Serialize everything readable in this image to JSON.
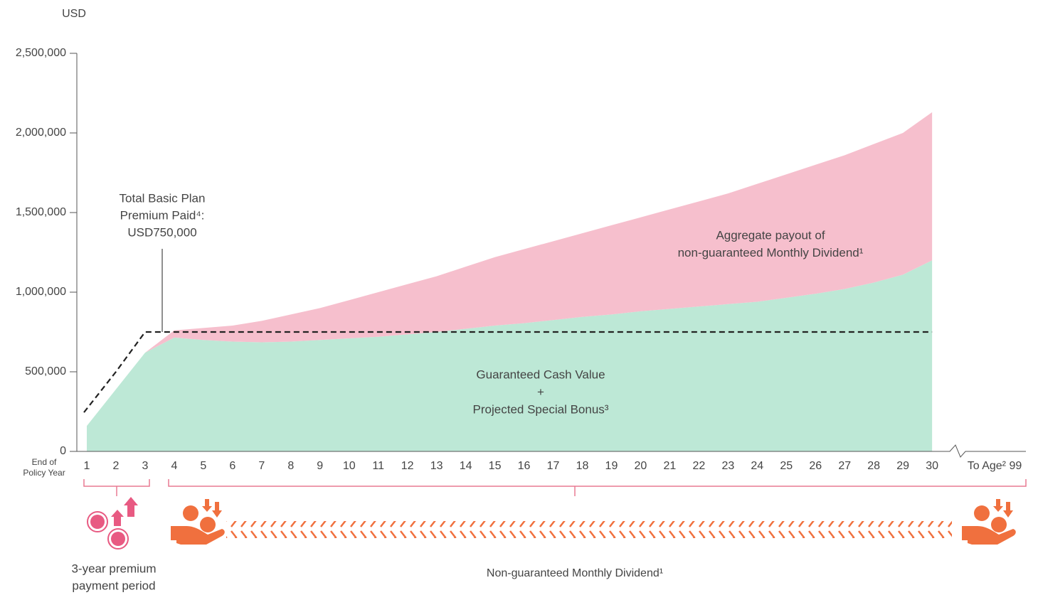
{
  "chart_data": {
    "type": "stacked_area",
    "y_unit_label": "USD",
    "x_axis_label": [
      "End of",
      "Policy Year"
    ],
    "categories": [
      "1",
      "2",
      "3",
      "4",
      "5",
      "6",
      "7",
      "8",
      "9",
      "10",
      "11",
      "12",
      "13",
      "14",
      "15",
      "16",
      "17",
      "18",
      "19",
      "20",
      "21",
      "22",
      "23",
      "24",
      "25",
      "26",
      "27",
      "28",
      "29",
      "30",
      "To Age² 99"
    ],
    "ylim": [
      0,
      2500000
    ],
    "yticks": [
      0,
      {
        "value": 500000,
        "label": "500,000"
      },
      {
        "value": 1000000,
        "label": "1,000,000"
      },
      {
        "value": 1500000,
        "label": "1,500,000"
      },
      {
        "value": 2000000,
        "label": "2,000,000"
      },
      {
        "value": 2500000,
        "label": "2,500,000"
      }
    ],
    "series": [
      {
        "name": [
          "Guaranteed Cash Value",
          "+",
          "Projected Special Bonus³"
        ],
        "color": "#bde8d6",
        "values": [
          160000,
          390000,
          620000,
          715000,
          700000,
          690000,
          685000,
          690000,
          700000,
          710000,
          720000,
          735000,
          750000,
          770000,
          790000,
          805000,
          825000,
          845000,
          860000,
          880000,
          895000,
          910000,
          925000,
          940000,
          965000,
          990000,
          1020000,
          1060000,
          1110000,
          1200000,
          null
        ]
      },
      {
        "name": [
          "Aggregate payout of",
          "non-guaranteed Monthly Dividend¹"
        ],
        "color": "#f6bfcd",
        "values": [
          0,
          0,
          0,
          45000,
          75000,
          100000,
          135000,
          170000,
          200000,
          240000,
          280000,
          315000,
          350000,
          390000,
          430000,
          465000,
          495000,
          525000,
          560000,
          590000,
          625000,
          660000,
          695000,
          740000,
          775000,
          810000,
          840000,
          870000,
          890000,
          930000,
          null
        ]
      }
    ],
    "premium_line": {
      "name": [
        "Total Basic Plan",
        "Premium Paid⁴:",
        "USD750,000"
      ],
      "color": "#222222",
      "values": [
        245000,
        500000,
        750000,
        750000,
        750000,
        750000,
        750000,
        750000,
        750000,
        750000,
        750000,
        750000,
        750000,
        750000,
        750000,
        750000,
        750000,
        750000,
        750000,
        750000,
        750000,
        750000,
        750000,
        750000,
        750000,
        750000,
        750000,
        750000,
        750000,
        750000,
        null
      ]
    },
    "premium_period_label": [
      "3-year premium",
      "payment period"
    ],
    "dividend_label": "Non-guaranteed Monthly Dividend¹"
  }
}
